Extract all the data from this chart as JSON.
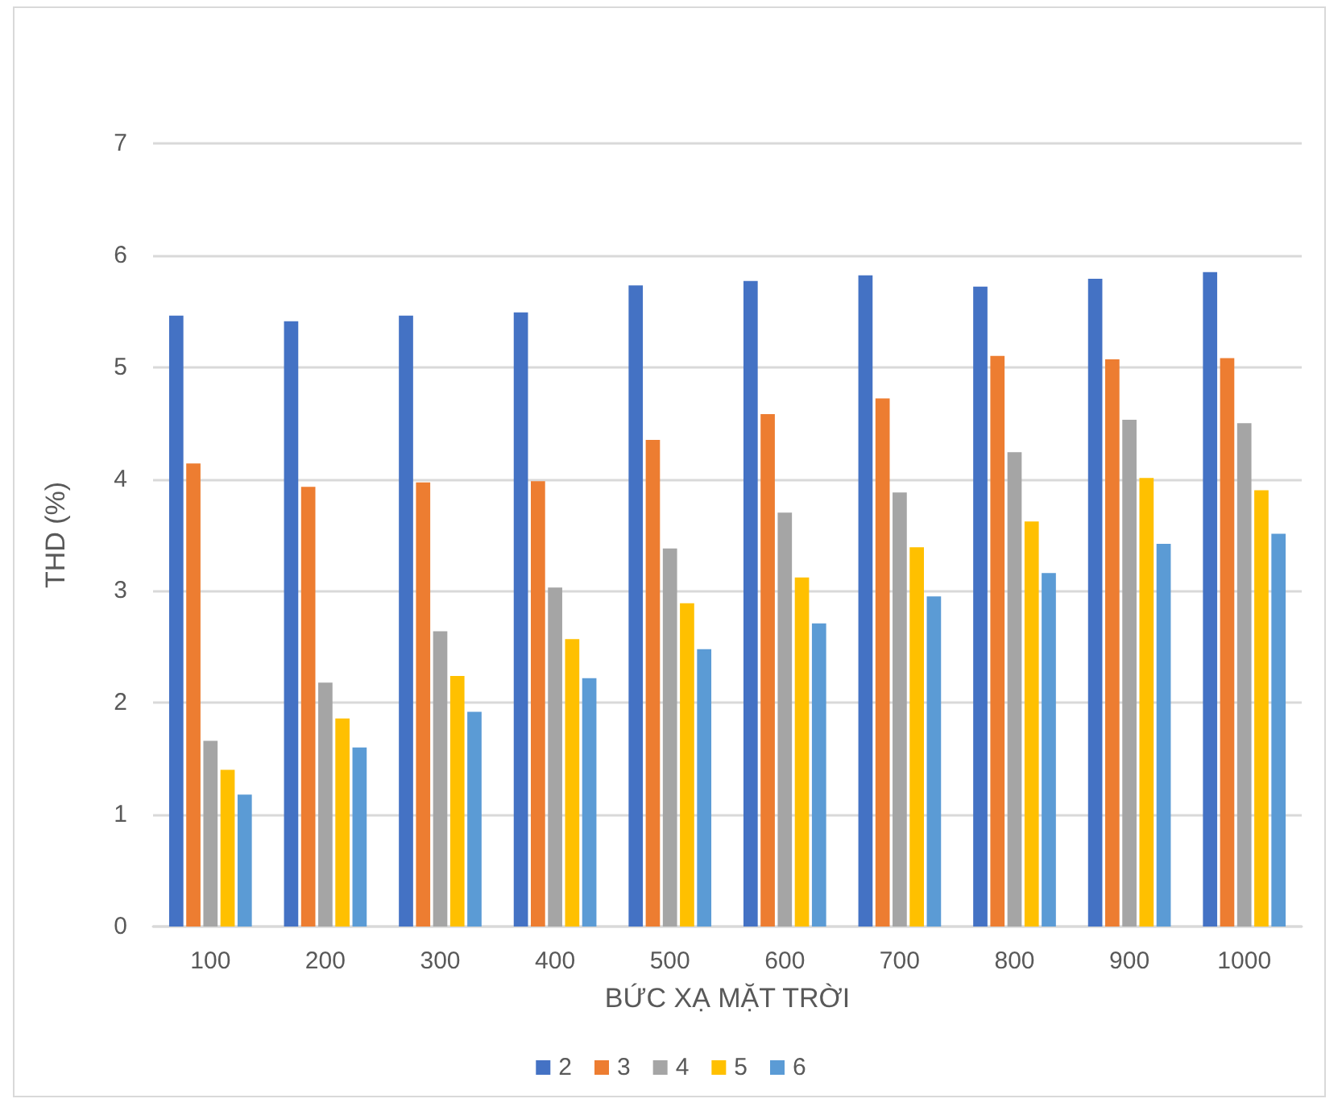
{
  "chart_data": {
    "type": "bar",
    "xlabel": "BỨC XẠ MẶT TRỜI",
    "ylabel": "THD (%)",
    "categories": [
      "100",
      "200",
      "300",
      "400",
      "500",
      "600",
      "700",
      "800",
      "900",
      "1000"
    ],
    "series": [
      {
        "name": "2",
        "color": "#4472c4",
        "values": [
          5.46,
          5.41,
          5.46,
          5.49,
          5.73,
          5.77,
          5.82,
          5.72,
          5.79,
          5.85
        ]
      },
      {
        "name": "3",
        "color": "#ed7d31",
        "values": [
          4.14,
          3.93,
          3.97,
          3.98,
          4.35,
          4.58,
          4.72,
          5.1,
          5.07,
          5.08
        ]
      },
      {
        "name": "4",
        "color": "#a5a5a5",
        "values": [
          1.66,
          2.18,
          2.64,
          3.03,
          3.38,
          3.7,
          3.88,
          4.24,
          4.53,
          4.5
        ]
      },
      {
        "name": "5",
        "color": "#ffc000",
        "values": [
          1.4,
          1.86,
          2.24,
          2.57,
          2.89,
          3.12,
          3.39,
          3.62,
          4.01,
          3.9
        ]
      },
      {
        "name": "6",
        "color": "#5b9bd5",
        "values": [
          1.18,
          1.6,
          1.92,
          2.22,
          2.48,
          2.71,
          2.95,
          3.16,
          3.42,
          3.51
        ]
      }
    ],
    "ylim": [
      0,
      7
    ],
    "yticks": [
      0,
      1,
      2,
      3,
      4,
      5,
      6,
      7
    ],
    "grid": "y",
    "legend": "bottom"
  }
}
